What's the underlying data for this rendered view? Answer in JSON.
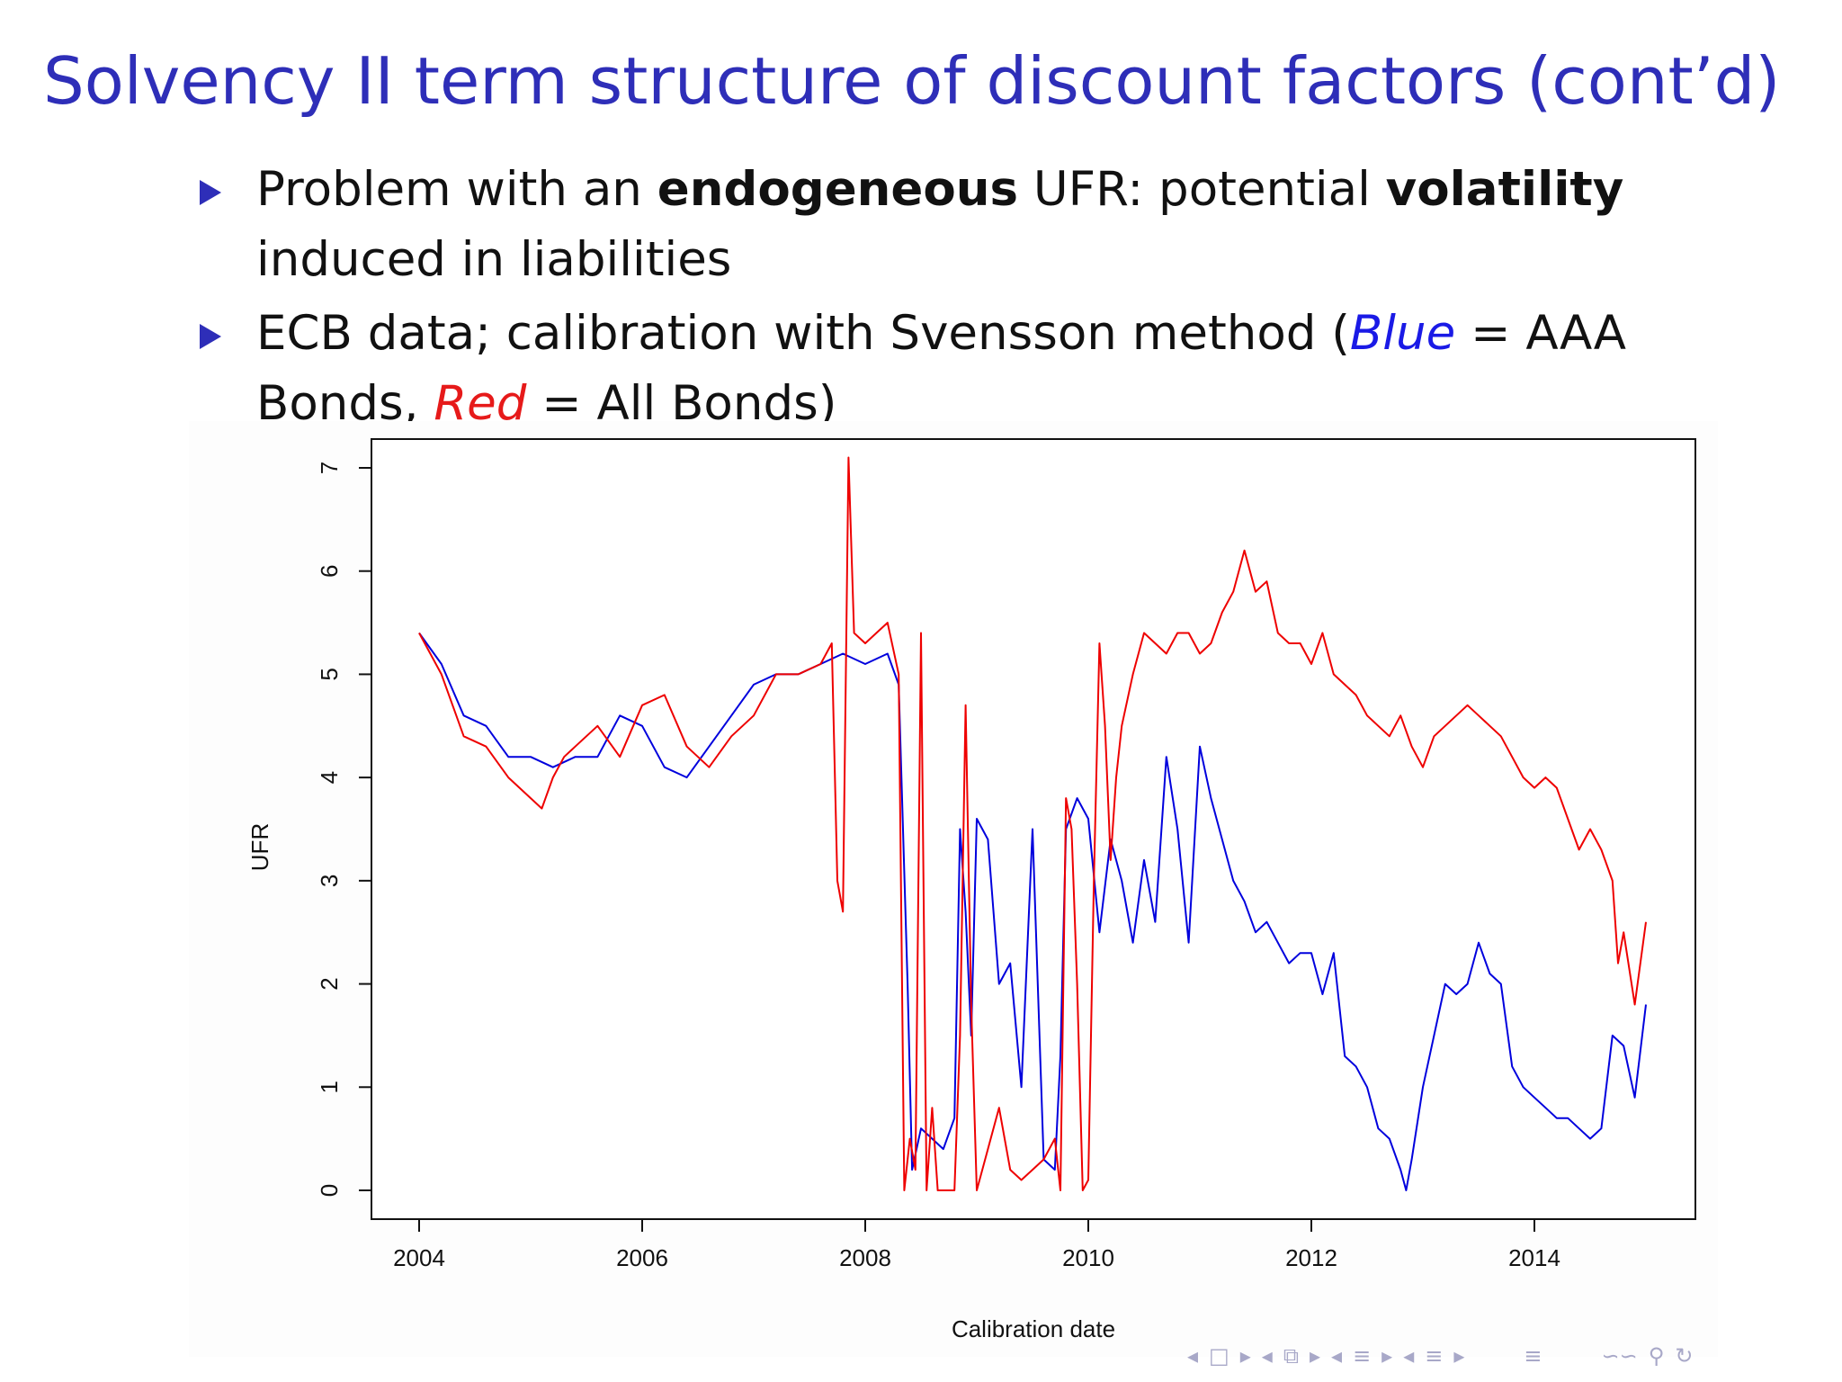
{
  "slide": {
    "title": "Solvency II term structure of discount factors (cont’d)",
    "bullet1": {
      "part1": "Problem with an ",
      "bold1": "endogeneous",
      "part2": " UFR: potential ",
      "bold2": "volatility",
      "part3": " induced in liabilities"
    },
    "bullet2": {
      "part1": "ECB data; calibration with Svensson method (",
      "blue_word": "Blue",
      "part2": " = AAA Bonds, ",
      "red_word": "Red",
      "part3": " = All Bonds)"
    }
  },
  "navigation": {
    "prev_icon": "◂",
    "frame_icon": "□",
    "next_icon": "▸",
    "subsection_icon": "⧉",
    "section_icon": "≡",
    "doc_icon": "≡",
    "zoom_icon": "∽∽",
    "search_icon": "⚲",
    "refresh_icon": "↻"
  },
  "chart_data": {
    "type": "line",
    "xlabel": "Calibration date",
    "ylabel": "UFR",
    "xlim": [
      2004,
      2015
    ],
    "ylim": [
      0,
      7
    ],
    "x_ticks": [
      "2004",
      "2006",
      "2008",
      "2010",
      "2012",
      "2014"
    ],
    "y_ticks": [
      "0",
      "1",
      "2",
      "3",
      "4",
      "5",
      "6",
      "7"
    ],
    "grid": false,
    "series": [
      {
        "color": "#0000dd",
        "x": [
          2004.0,
          2004.2,
          2004.4,
          2004.6,
          2004.8,
          2005.0,
          2005.2,
          2005.4,
          2005.6,
          2005.8,
          2006.0,
          2006.2,
          2006.4,
          2006.6,
          2006.8,
          2007.0,
          2007.2,
          2007.4,
          2007.6,
          2007.8,
          2008.0,
          2008.2,
          2008.3,
          2008.38,
          2008.42,
          2008.5,
          2008.6,
          2008.7,
          2008.8,
          2008.85,
          2008.9,
          2008.95,
          2009.0,
          2009.1,
          2009.2,
          2009.3,
          2009.4,
          2009.5,
          2009.6,
          2009.7,
          2009.75,
          2009.8,
          2009.9,
          2010.0,
          2010.1,
          2010.2,
          2010.3,
          2010.4,
          2010.5,
          2010.6,
          2010.7,
          2010.8,
          2010.9,
          2011.0,
          2011.1,
          2011.2,
          2011.3,
          2011.4,
          2011.5,
          2011.6,
          2011.7,
          2011.8,
          2011.9,
          2012.0,
          2012.1,
          2012.2,
          2012.3,
          2012.4,
          2012.5,
          2012.6,
          2012.7,
          2012.8,
          2012.85,
          2012.9,
          2013.0,
          2013.1,
          2013.2,
          2013.3,
          2013.4,
          2013.5,
          2013.6,
          2013.7,
          2013.8,
          2013.9,
          2014.0,
          2014.1,
          2014.2,
          2014.3,
          2014.4,
          2014.5,
          2014.6,
          2014.7,
          2014.8,
          2014.9,
          2015.0
        ],
        "values": [
          5.4,
          5.1,
          4.6,
          4.5,
          4.2,
          4.2,
          4.1,
          4.2,
          4.2,
          4.6,
          4.5,
          4.1,
          4.0,
          4.3,
          4.6,
          4.9,
          5.0,
          5.0,
          5.1,
          5.2,
          5.1,
          5.2,
          4.9,
          2.0,
          0.2,
          0.6,
          0.5,
          0.4,
          0.7,
          3.5,
          2.7,
          1.5,
          3.6,
          3.4,
          2.0,
          2.2,
          1.0,
          3.5,
          0.3,
          0.2,
          1.3,
          3.5,
          3.8,
          3.6,
          2.5,
          3.4,
          3.0,
          2.4,
          3.2,
          2.6,
          4.2,
          3.5,
          2.4,
          4.3,
          3.8,
          3.4,
          3.0,
          2.8,
          2.5,
          2.6,
          2.4,
          2.2,
          2.3,
          2.3,
          1.9,
          2.3,
          1.3,
          1.2,
          1.0,
          0.6,
          0.5,
          0.2,
          0.0,
          0.3,
          1.0,
          1.5,
          2.0,
          1.9,
          2.0,
          2.4,
          2.1,
          2.0,
          1.2,
          1.0,
          0.9,
          0.8,
          0.7,
          0.7,
          0.6,
          0.5,
          0.6,
          1.5,
          1.4,
          0.9,
          1.8
        ]
      },
      {
        "color": "#ee0000",
        "x": [
          2004.0,
          2004.2,
          2004.4,
          2004.6,
          2004.8,
          2005.0,
          2005.1,
          2005.2,
          2005.3,
          2005.4,
          2005.6,
          2005.8,
          2006.0,
          2006.2,
          2006.4,
          2006.6,
          2006.8,
          2007.0,
          2007.2,
          2007.4,
          2007.6,
          2007.7,
          2007.75,
          2007.8,
          2007.85,
          2007.9,
          2008.0,
          2008.1,
          2008.2,
          2008.3,
          2008.35,
          2008.4,
          2008.45,
          2008.5,
          2008.55,
          2008.6,
          2008.65,
          2008.7,
          2008.8,
          2008.85,
          2008.9,
          2008.95,
          2009.0,
          2009.1,
          2009.2,
          2009.3,
          2009.4,
          2009.5,
          2009.6,
          2009.7,
          2009.75,
          2009.8,
          2009.85,
          2009.9,
          2009.95,
          2010.0,
          2010.05,
          2010.1,
          2010.15,
          2010.2,
          2010.25,
          2010.3,
          2010.4,
          2010.5,
          2010.6,
          2010.7,
          2010.8,
          2010.9,
          2011.0,
          2011.1,
          2011.2,
          2011.3,
          2011.4,
          2011.5,
          2011.6,
          2011.7,
          2011.8,
          2011.9,
          2012.0,
          2012.1,
          2012.2,
          2012.3,
          2012.4,
          2012.5,
          2012.6,
          2012.7,
          2012.8,
          2012.9,
          2013.0,
          2013.1,
          2013.2,
          2013.3,
          2013.4,
          2013.5,
          2013.6,
          2013.7,
          2013.8,
          2013.9,
          2014.0,
          2014.1,
          2014.2,
          2014.3,
          2014.4,
          2014.5,
          2014.6,
          2014.7,
          2014.75,
          2014.8,
          2014.9,
          2015.0
        ],
        "values": [
          5.4,
          5.0,
          4.4,
          4.3,
          4.0,
          3.8,
          3.7,
          4.0,
          4.2,
          4.3,
          4.5,
          4.2,
          4.7,
          4.8,
          4.3,
          4.1,
          4.4,
          4.6,
          5.0,
          5.0,
          5.1,
          5.3,
          3.0,
          2.7,
          7.1,
          5.4,
          5.3,
          5.4,
          5.5,
          5.0,
          0.0,
          0.5,
          0.2,
          5.4,
          0.0,
          0.8,
          0.0,
          0.0,
          0.0,
          1.5,
          4.7,
          1.8,
          0.0,
          0.4,
          0.8,
          0.2,
          0.1,
          0.2,
          0.3,
          0.5,
          0.0,
          3.8,
          3.5,
          2.0,
          0.0,
          0.1,
          3.0,
          5.3,
          4.5,
          3.2,
          4.0,
          4.5,
          5.0,
          5.4,
          5.3,
          5.2,
          5.4,
          5.4,
          5.2,
          5.3,
          5.6,
          5.8,
          6.2,
          5.8,
          5.9,
          5.4,
          5.3,
          5.3,
          5.1,
          5.4,
          5.0,
          4.9,
          4.8,
          4.6,
          4.5,
          4.4,
          4.6,
          4.3,
          4.1,
          4.4,
          4.5,
          4.6,
          4.7,
          4.6,
          4.5,
          4.4,
          4.2,
          4.0,
          3.9,
          4.0,
          3.9,
          3.6,
          3.3,
          3.5,
          3.3,
          3.0,
          2.2,
          2.5,
          1.8,
          2.6
        ]
      }
    ]
  }
}
